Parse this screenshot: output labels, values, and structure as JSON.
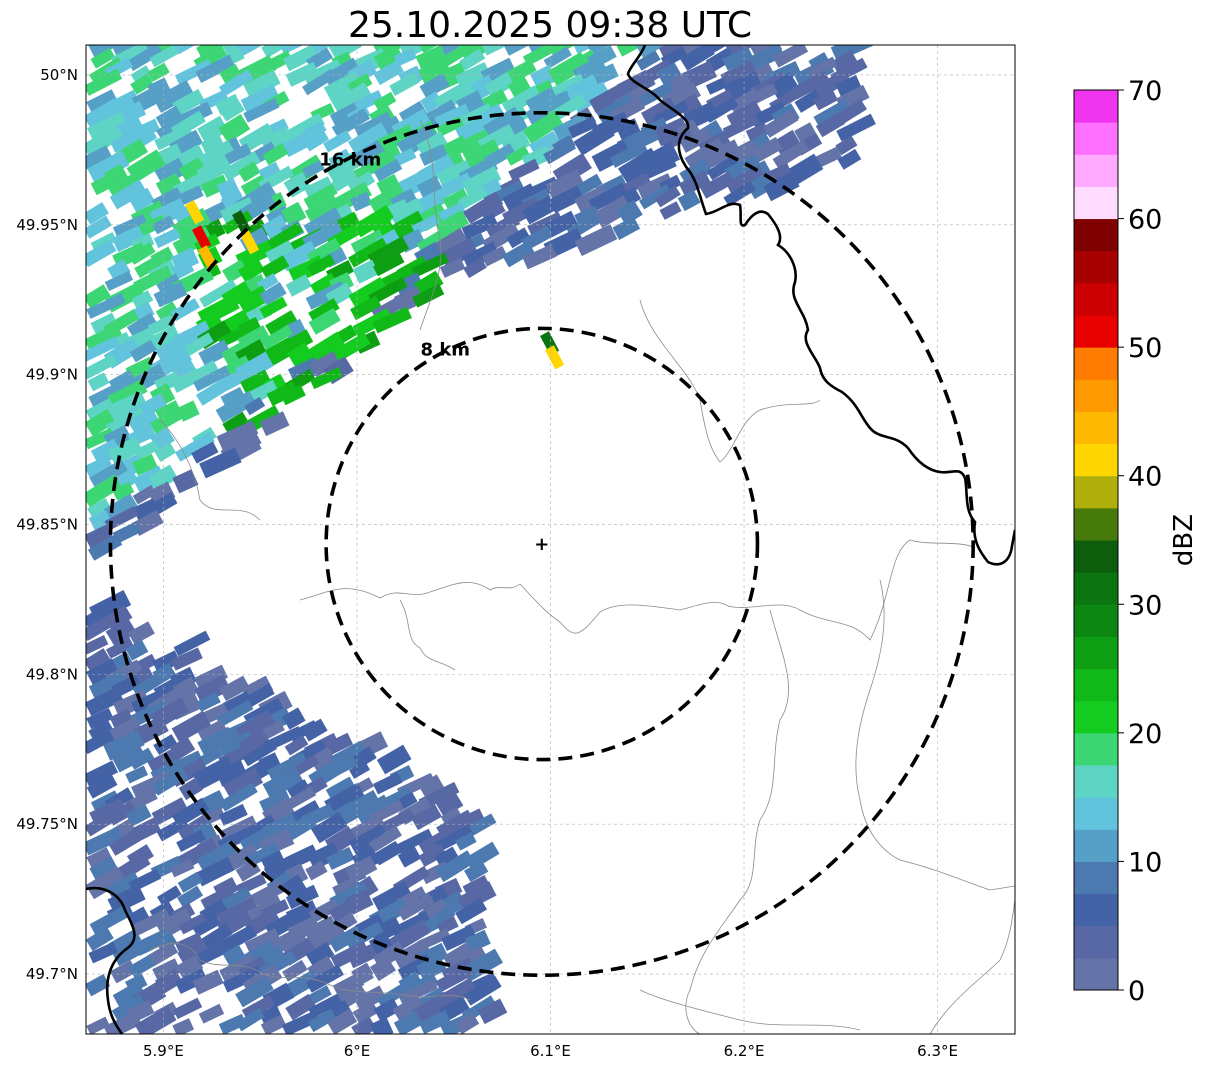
{
  "title": "25.10.2025 09:38 UTC",
  "map": {
    "lon_range": [
      5.86,
      6.34
    ],
    "lat_range": [
      49.68,
      50.01
    ],
    "x_ticks": [
      {
        "value": 5.9,
        "label": "5.9°E"
      },
      {
        "value": 6.0,
        "label": "6°E"
      },
      {
        "value": 6.1,
        "label": "6.1°E"
      },
      {
        "value": 6.2,
        "label": "6.2°E"
      },
      {
        "value": 6.3,
        "label": "6.3°E"
      }
    ],
    "y_ticks": [
      {
        "value": 50.0,
        "label": "50°N"
      },
      {
        "value": 49.95,
        "label": "49.95°N"
      },
      {
        "value": 49.9,
        "label": "49.9°N"
      },
      {
        "value": 49.85,
        "label": "49.85°N"
      },
      {
        "value": 49.8,
        "label": "49.8°N"
      },
      {
        "value": 49.75,
        "label": "49.75°N"
      },
      {
        "value": 49.7,
        "label": "49.7°N"
      }
    ],
    "radar_site": {
      "lon": 6.0955,
      "lat": 49.8435
    },
    "range_rings": [
      {
        "radius_km": 8,
        "label": "8 km"
      },
      {
        "radius_km": 16,
        "label": "16 km"
      }
    ],
    "gridlines": true
  },
  "colorbar": {
    "label": "dBZ",
    "min": 0,
    "max": 70,
    "step": 2.5,
    "ticks": [
      {
        "value": 0,
        "label": "0"
      },
      {
        "value": 10,
        "label": "10"
      },
      {
        "value": 20,
        "label": "20"
      },
      {
        "value": 30,
        "label": "30"
      },
      {
        "value": 40,
        "label": "40"
      },
      {
        "value": 50,
        "label": "50"
      },
      {
        "value": 60,
        "label": "60"
      },
      {
        "value": 70,
        "label": "70"
      }
    ],
    "colors": [
      "#6474a8",
      "#5868a4",
      "#4462a6",
      "#4c7ab0",
      "#56a0c8",
      "#62c4dc",
      "#5ed4c4",
      "#3dd674",
      "#14cc20",
      "#10b818",
      "#0e9e14",
      "#0c8812",
      "#0c7410",
      "#0c5e0c",
      "#467a0a",
      "#b0b00c",
      "#ffd600",
      "#ffb800",
      "#ff9a00",
      "#ff7c00",
      "#e80000",
      "#cc0000",
      "#a80000",
      "#7e0000",
      "#ffdcff",
      "#ffaaff",
      "#ff70ff",
      "#ee34ee"
    ]
  }
}
